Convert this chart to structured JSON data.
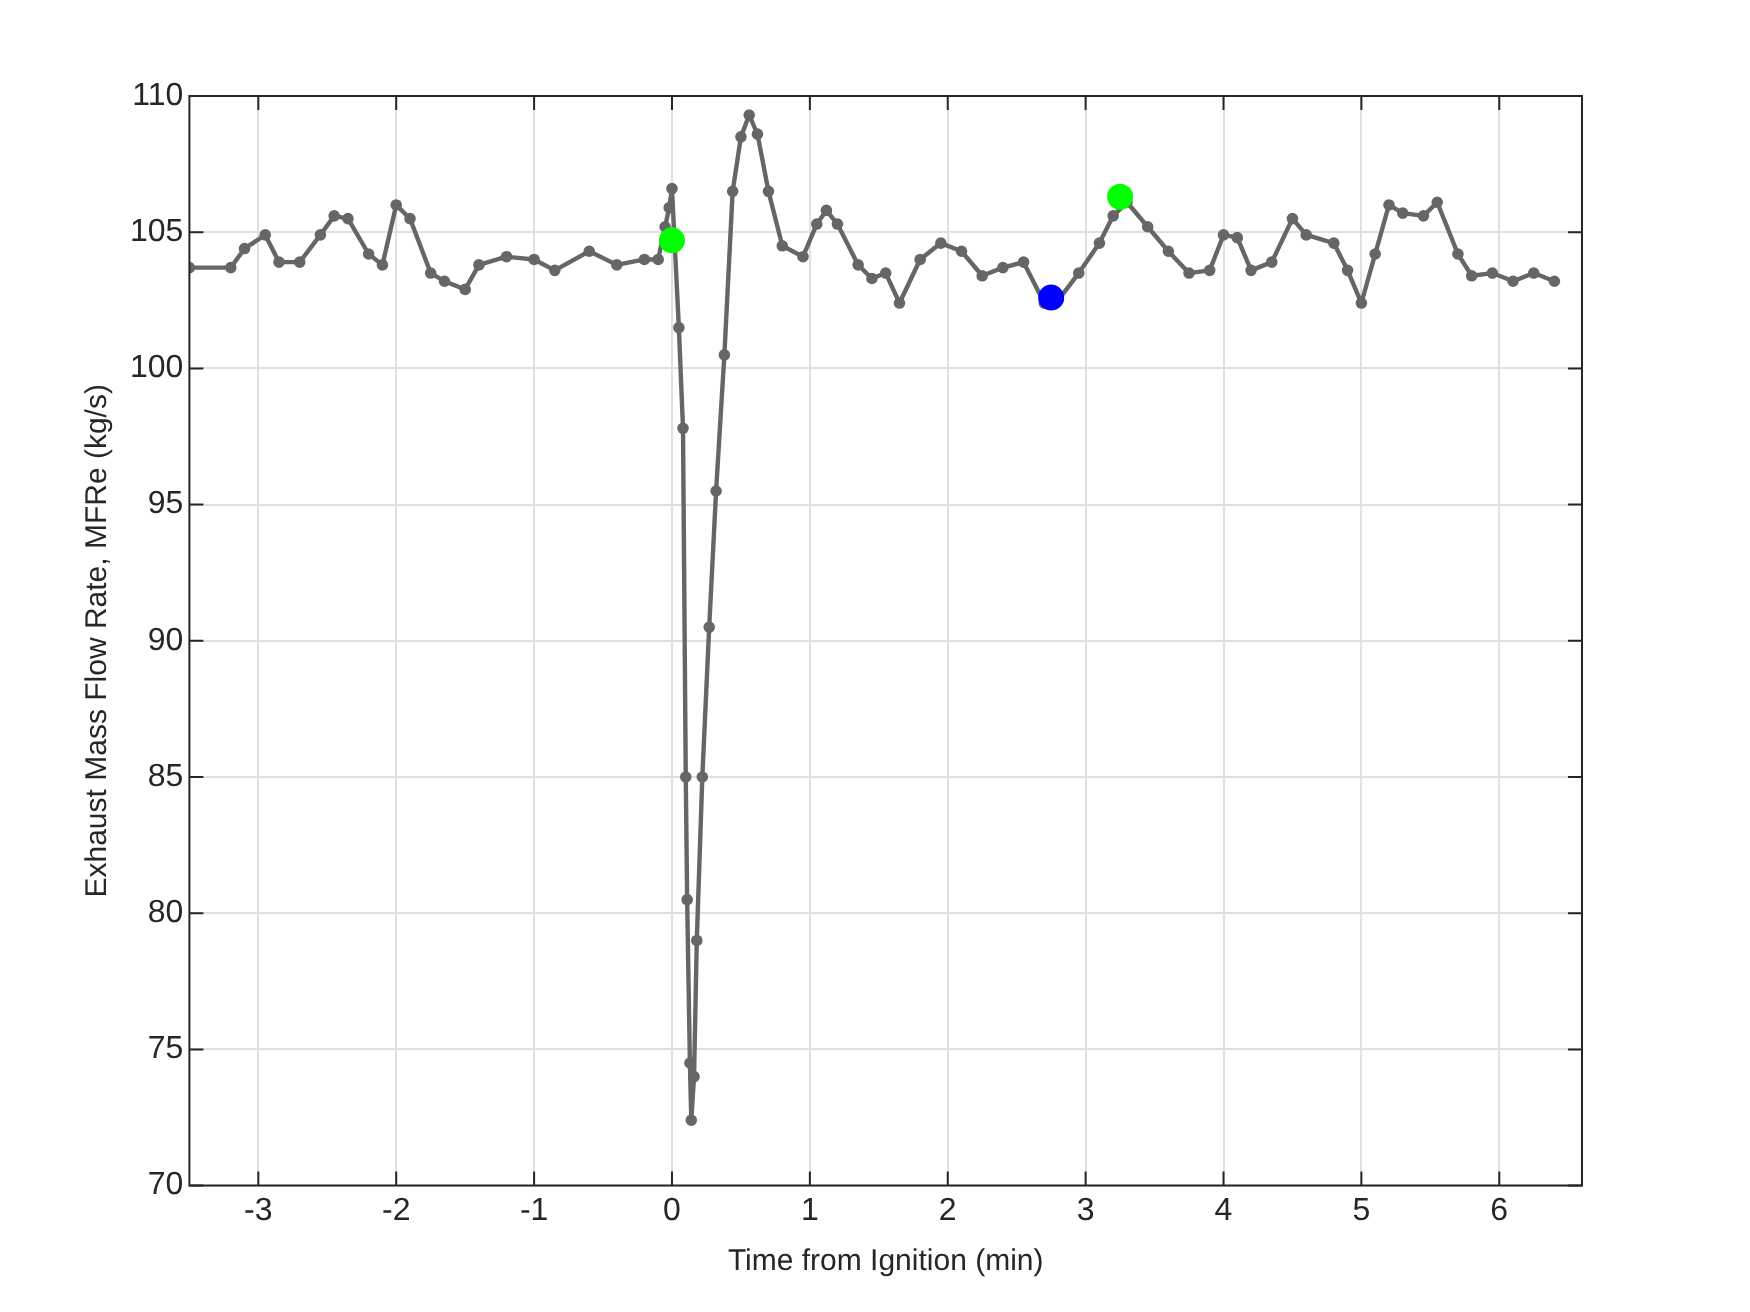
{
  "chart_data": {
    "type": "line",
    "xlabel": "Time from Ignition (min)",
    "ylabel": "Exhaust Mass Flow Rate, MFRe (kg/s)",
    "xlim": [
      -3.5,
      6.6
    ],
    "xticks": [
      -3,
      -2,
      -1,
      0,
      1,
      2,
      3,
      4,
      5,
      6
    ],
    "ylim": [
      70,
      110
    ],
    "yticks": [
      70,
      75,
      80,
      85,
      90,
      95,
      100,
      105,
      110
    ],
    "grid": true,
    "marker": "circle",
    "line_style": "solid",
    "series": [
      {
        "color": "#666666",
        "x": [
          -3.5,
          -3.2,
          -3.1,
          -2.95,
          -2.85,
          -2.7,
          -2.55,
          -2.45,
          -2.35,
          -2.2,
          -2.1,
          -2.0,
          -1.9,
          -1.75,
          -1.65,
          -1.5,
          -1.4,
          -1.2,
          -1.0,
          -0.85,
          -0.6,
          -0.4,
          -0.2,
          -0.1,
          -0.05,
          -0.02,
          0.0,
          0.05,
          0.08,
          0.1,
          0.11,
          0.13,
          0.14,
          0.16,
          0.18,
          0.22,
          0.27,
          0.32,
          0.38,
          0.44,
          0.5,
          0.56,
          0.62,
          0.7,
          0.8,
          0.95,
          1.05,
          1.12,
          1.2,
          1.35,
          1.45,
          1.55,
          1.65,
          1.8,
          1.95,
          2.1,
          2.25,
          2.4,
          2.55,
          2.7,
          2.8,
          2.95,
          3.1,
          3.2,
          3.3,
          3.45,
          3.6,
          3.75,
          3.9,
          4.0,
          4.1,
          4.2,
          4.35,
          4.5,
          4.6,
          4.8,
          4.9,
          5.0,
          5.1,
          5.2,
          5.3,
          5.45,
          5.55,
          5.7,
          5.8,
          5.95,
          6.1,
          6.25,
          6.4
        ],
        "values": [
          103.7,
          103.7,
          104.4,
          104.9,
          103.9,
          103.9,
          104.9,
          105.6,
          105.5,
          104.2,
          103.8,
          106.0,
          105.5,
          103.5,
          103.2,
          102.9,
          103.8,
          104.1,
          104.0,
          103.6,
          104.3,
          103.8,
          104.0,
          104.0,
          105.2,
          105.9,
          106.6,
          101.5,
          97.8,
          85,
          80.5,
          74.5,
          72.4,
          74,
          79,
          85,
          90.5,
          95.5,
          100.5,
          106.5,
          108.5,
          109.3,
          108.6,
          106.5,
          104.5,
          104.1,
          105.3,
          105.8,
          105.3,
          103.8,
          103.3,
          103.5,
          102.4,
          104.0,
          104.6,
          104.3,
          103.4,
          103.7,
          103.9,
          102.4,
          102.5,
          103.5,
          104.6,
          105.6,
          106.1,
          105.2,
          104.3,
          103.5,
          103.6,
          104.9,
          104.8,
          103.6,
          103.9,
          105.5,
          104.9,
          104.6,
          103.6,
          102.4,
          104.2,
          106.0,
          105.7,
          105.6,
          106.1,
          104.2,
          103.4,
          103.5,
          103.2,
          103.5,
          103.2
        ]
      },
      {
        "type": "scatter",
        "color": "#00ff00",
        "x": [
          0,
          3.25
        ],
        "values": [
          104.7,
          106.3
        ]
      },
      {
        "type": "scatter",
        "color": "#0000ff",
        "x": [
          2.75
        ],
        "values": [
          102.6
        ]
      }
    ]
  }
}
